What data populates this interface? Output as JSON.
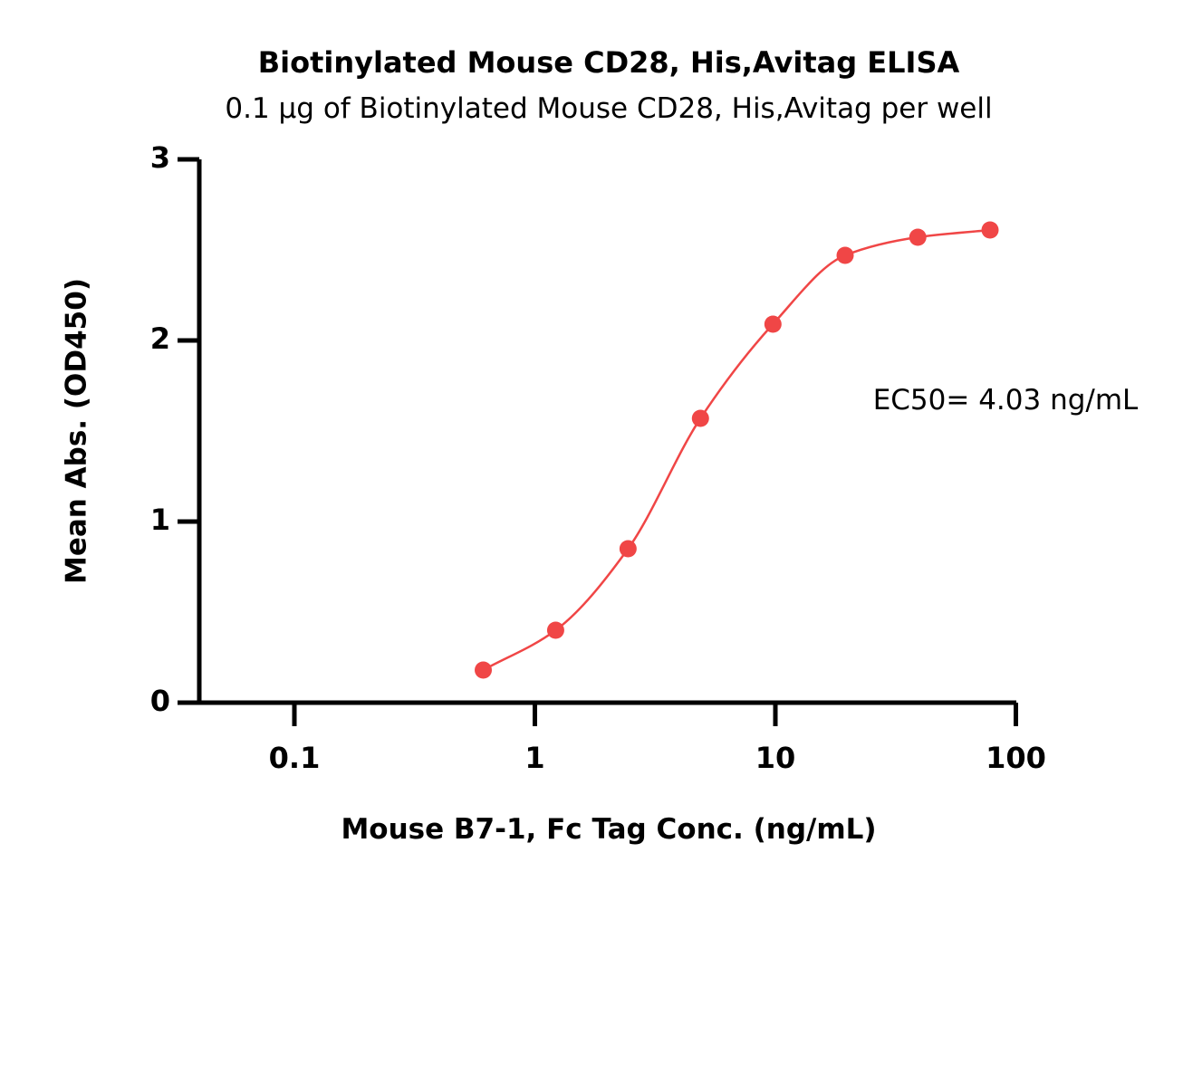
{
  "chart_data": {
    "type": "scatter",
    "title": "Biotinylated Mouse CD28, His,Avitag ELISA",
    "subtitle": "0.1 μg of Biotinylated Mouse CD28, His,Avitag per well",
    "xlabel": "Mouse B7-1, Fc Tag Conc. (ng/mL)",
    "ylabel": "Mean Abs. (OD450)",
    "x_scale": "log",
    "xlim": [
      0.04,
      100
    ],
    "ylim": [
      0,
      3
    ],
    "x_ticks": [
      0.1,
      1,
      10,
      100
    ],
    "x_tick_labels": [
      "0.1",
      "1",
      "10",
      "100"
    ],
    "y_ticks": [
      0,
      1,
      2,
      3
    ],
    "y_tick_labels": [
      "0",
      "1",
      "2",
      "3"
    ],
    "grid": false,
    "marker_color": "#f04646",
    "line_color": "#f04646",
    "series": [
      {
        "x": [
          0.61,
          1.22,
          2.44,
          4.88,
          9.77,
          19.5,
          39.1,
          78.1
        ],
        "y": [
          0.18,
          0.4,
          0.85,
          1.57,
          2.09,
          2.47,
          2.57,
          2.61
        ]
      }
    ],
    "annotation": "EC50= 4.03 ng/mL"
  }
}
